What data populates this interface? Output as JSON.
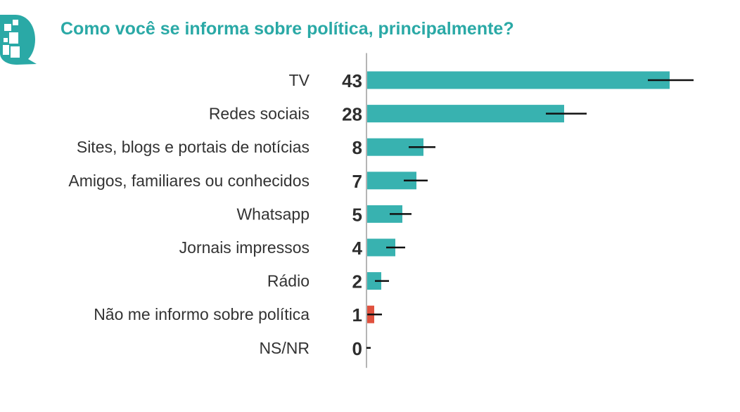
{
  "title": "Como você se informa sobre política, principalmente?",
  "colors": {
    "title": "#2aa9a6",
    "bar": "#38b2b0",
    "highlight_bar": "#e0513e",
    "error_bar": "#111111",
    "axis": "#b5b5b5",
    "logo": "#2aa9a6"
  },
  "logo_icon": "speech-bubble-icon",
  "chart_data": {
    "type": "bar",
    "orientation": "horizontal",
    "title": "Como você se informa sobre política, principalmente?",
    "categories": [
      "TV",
      "Redes sociais",
      "Sites, blogs e portais de notícias",
      "Amigos, familiares ou conhecidos",
      "Whatsapp",
      "Jornais impressos",
      "Rádio",
      "Não me informo sobre política",
      "NS/NR"
    ],
    "values": [
      43,
      28,
      8,
      7,
      5,
      4,
      2,
      1,
      0
    ],
    "value_labels": [
      "43",
      "28",
      "8",
      "7",
      "5",
      "4",
      "2",
      "1",
      "0"
    ],
    "error_low": [
      40,
      25.5,
      6,
      5.3,
      3.3,
      2.8,
      1.2,
      0.1,
      0
    ],
    "error_high": [
      46.5,
      31.3,
      9.8,
      8.7,
      6.4,
      5.5,
      3.2,
      2.2,
      0.6
    ],
    "highlight_index": 7,
    "xlim": [
      0,
      50
    ],
    "grid": false,
    "legend": "none"
  }
}
